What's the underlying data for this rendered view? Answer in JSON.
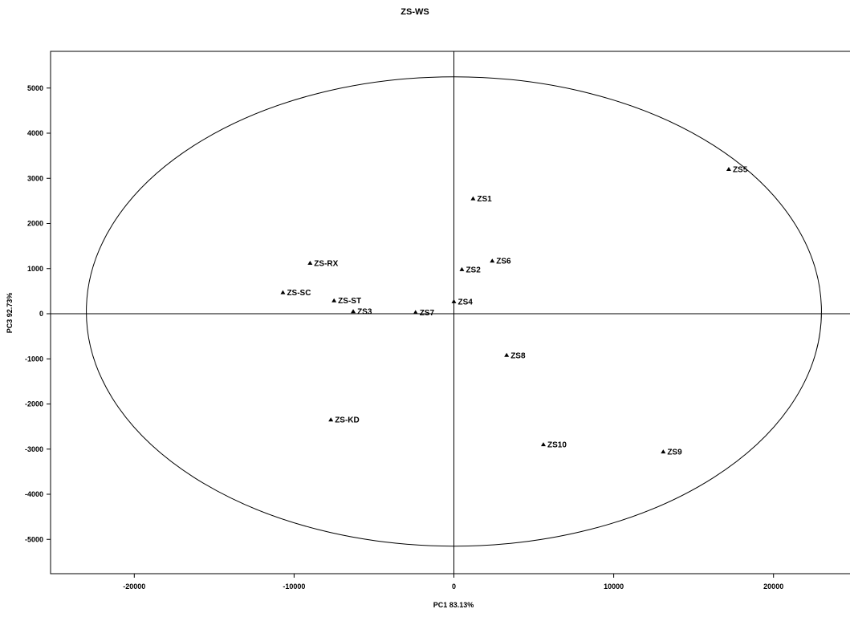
{
  "chart_data": {
    "type": "scatter",
    "title": "ZS-WS",
    "xlabel": "PC1 83.13%",
    "ylabel": "PC3 92.73%",
    "xlim": [
      -25000,
      25000
    ],
    "ylim": [
      -5700,
      5800
    ],
    "x_ticks": [
      -20000,
      -10000,
      0,
      10000,
      20000
    ],
    "y_ticks": [
      5000,
      4000,
      3000,
      2000,
      1000,
      0,
      -1000,
      -2000,
      -3000,
      -4000,
      -5000
    ],
    "ellipse": {
      "cx": 0,
      "cy": 50,
      "rx": 23000,
      "ry": 5200
    },
    "grid": false,
    "legend": "none",
    "marker": "triangle",
    "points": [
      {
        "label": "ZS1",
        "x": 1200,
        "y": 2550
      },
      {
        "label": "ZS2",
        "x": 500,
        "y": 980
      },
      {
        "label": "ZS3",
        "x": -6300,
        "y": 50
      },
      {
        "label": "ZS4",
        "x": 0,
        "y": 270
      },
      {
        "label": "ZS5",
        "x": 17200,
        "y": 3200
      },
      {
        "label": "ZS6",
        "x": 2400,
        "y": 1170
      },
      {
        "label": "ZS7",
        "x": -2400,
        "y": 30
      },
      {
        "label": "ZS8",
        "x": 3300,
        "y": -920
      },
      {
        "label": "ZS9",
        "x": 13100,
        "y": -3060
      },
      {
        "label": "ZS10",
        "x": 5600,
        "y": -2900
      },
      {
        "label": "ZS-RX",
        "x": -9000,
        "y": 1120
      },
      {
        "label": "ZS-SC",
        "x": -10700,
        "y": 470
      },
      {
        "label": "ZS-ST",
        "x": -7500,
        "y": 290
      },
      {
        "label": "ZS-KD",
        "x": -7700,
        "y": -2350
      }
    ]
  }
}
